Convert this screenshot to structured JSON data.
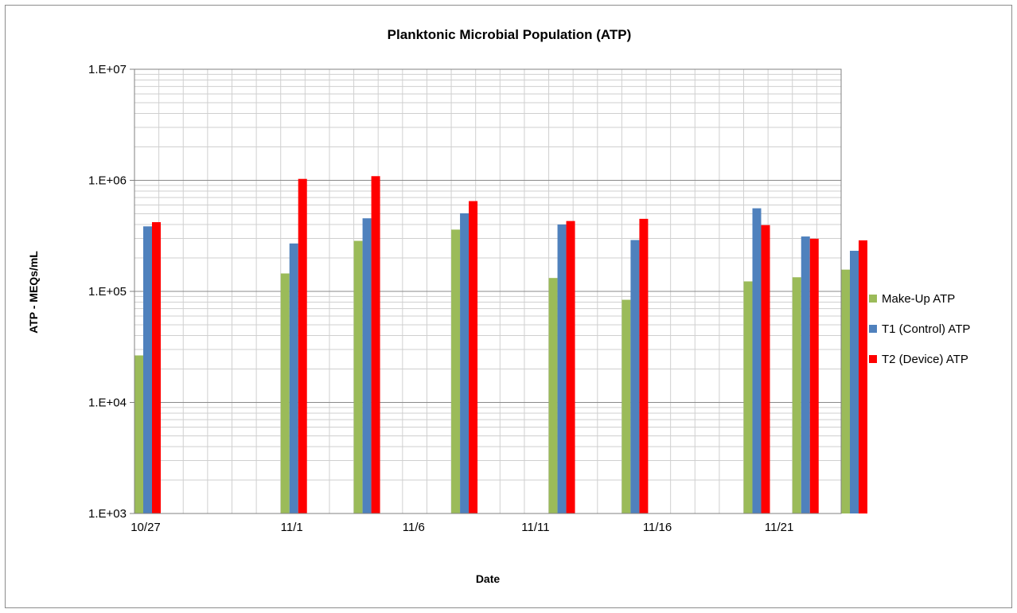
{
  "chart_data": {
    "type": "bar",
    "title": "Planktonic Microbial Population (ATP)",
    "xlabel": "Date",
    "ylabel": "ATP - MEQs/mL",
    "yscale": "log",
    "ylim": [
      1000,
      10000000
    ],
    "y_tick_labels": [
      "1.E+03",
      "1.E+04",
      "1.E+05",
      "1.E+06",
      "1.E+07"
    ],
    "x_tick_labels": [
      "10/27",
      "11/1",
      "11/6",
      "11/11",
      "11/16",
      "11/21"
    ],
    "grid": true,
    "legend_position": "right",
    "categories": [
      "10/27",
      "11/1",
      "11/4",
      "11/8",
      "11/12",
      "11/15",
      "11/20",
      "11/22",
      "11/24"
    ],
    "series": [
      {
        "name": "Make-Up ATP",
        "color": "#9bbb59",
        "values": [
          26500,
          145000,
          285000,
          360000,
          132000,
          84000,
          123000,
          134000,
          157000
        ]
      },
      {
        "name": "T1 (Control) ATP",
        "color": "#4f81bd",
        "values": [
          385000,
          270000,
          455000,
          505000,
          400000,
          290000,
          560000,
          312000,
          232000
        ]
      },
      {
        "name": "T2 (Device) ATP",
        "color": "#ff0000",
        "values": [
          420000,
          1030000,
          1090000,
          650000,
          430000,
          450000,
          395000,
          298000,
          288000
        ]
      }
    ]
  }
}
